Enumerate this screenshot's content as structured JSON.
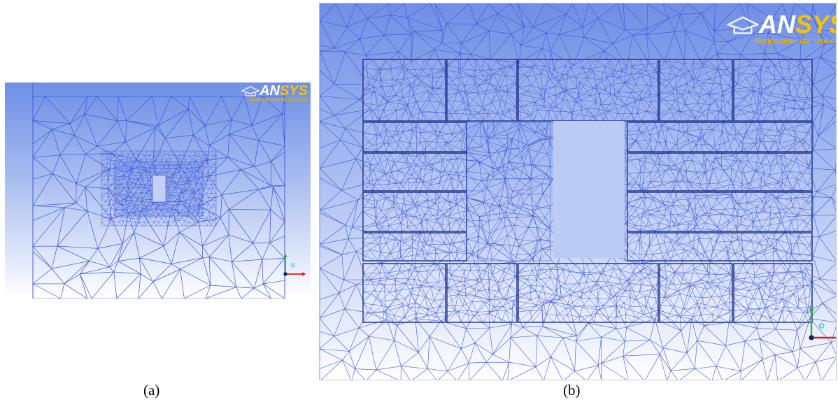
{
  "figure": {
    "caption_a": "(a)",
    "caption_b": "(b)"
  },
  "logo": {
    "text_an": "AN",
    "text_sys": "SYS",
    "subtitle": "Noncommercial use only"
  },
  "colors": {
    "mesh_edge": "#3d55d6",
    "background_top": "#6f8fe6",
    "background_bottom": "#ffffff",
    "logo_gold": "#f5c400",
    "axis_y": "#2fb52f",
    "axis_x": "#d02020",
    "axis_z": "#3fd0e0"
  },
  "icons": {
    "axis_triad": "axis-triad-icon",
    "logo_cap": "ansys-cap-icon"
  }
}
